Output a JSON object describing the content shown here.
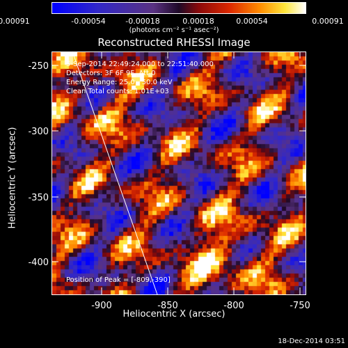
{
  "colorbar": {
    "ticks": [
      "-0.00091",
      "-0.00054",
      "-0.00018",
      "0.00018",
      "0.00054",
      "0.00091"
    ],
    "units": "(photons cm⁻² s⁻¹ asec⁻²)"
  },
  "title": "Reconstructed RHESSI Image",
  "info": {
    "time": "5-Sep-2014 22:49:24.000 to 22:51:40.000",
    "detectors": "Detectors: 3F 6F 9F, Att 0",
    "energy": "Energy Range: 25.0 - 50.0 keV",
    "clean": "Clean     Total counts: 1.01E+03"
  },
  "peak_text": "Position of Peak = [-809,-390]",
  "axes": {
    "xlabel": "Heliocentric X (arcsec)",
    "ylabel": "Heliocentric Y (arcsec)",
    "xticks": [
      "-900",
      "-850",
      "-800",
      "-750"
    ],
    "yticks": [
      "-250",
      "-300",
      "-350",
      "-400"
    ]
  },
  "footer": "18-Dec-2014 03:51",
  "colors": {
    "background": "#000000",
    "axis": "#ffffff",
    "limb": "#ffffff"
  },
  "chart_data": {
    "type": "heatmap",
    "title": "Reconstructed RHESSI Image",
    "xlabel": "Heliocentric X (arcsec)",
    "ylabel": "Heliocentric Y (arcsec)",
    "xlim": [
      -938,
      -742
    ],
    "ylim": [
      -428,
      -240
    ],
    "colorbar_range": [
      -0.00091,
      0.00091
    ],
    "colormap": "blue-purple-red-orange-yellow-white",
    "peak": [
      -809,
      -390
    ]
  }
}
